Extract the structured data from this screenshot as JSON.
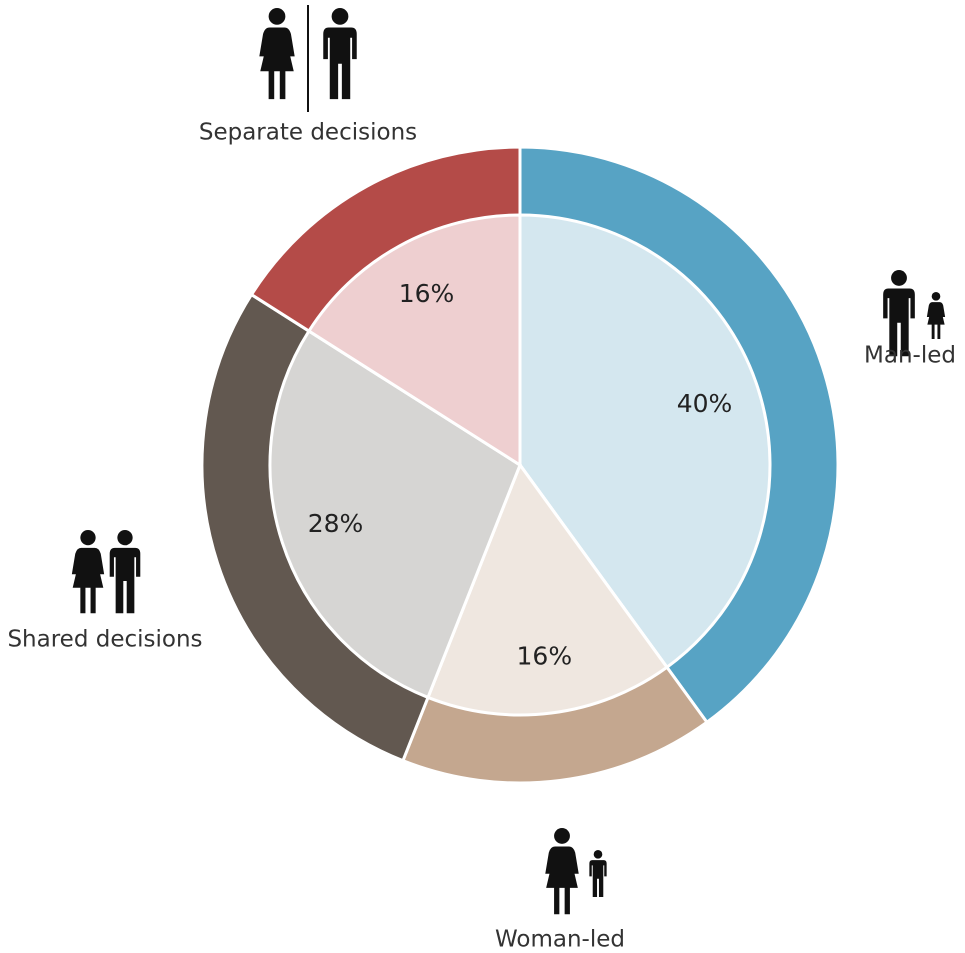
{
  "chart_data": {
    "type": "pie",
    "categories": [
      "Man-led",
      "Woman-led",
      "Shared decisions",
      "Separate decisions"
    ],
    "values": [
      40,
      16,
      28,
      16
    ],
    "value_labels": [
      "40%",
      "16%",
      "28%",
      "16%"
    ],
    "colors": [
      "#57a3c4",
      "#c4a78f",
      "#625850",
      "#b44b48"
    ],
    "light_colors": [
      "#d4e7ef",
      "#efe7e0",
      "#d6d5d3",
      "#eecfd0"
    ]
  }
}
